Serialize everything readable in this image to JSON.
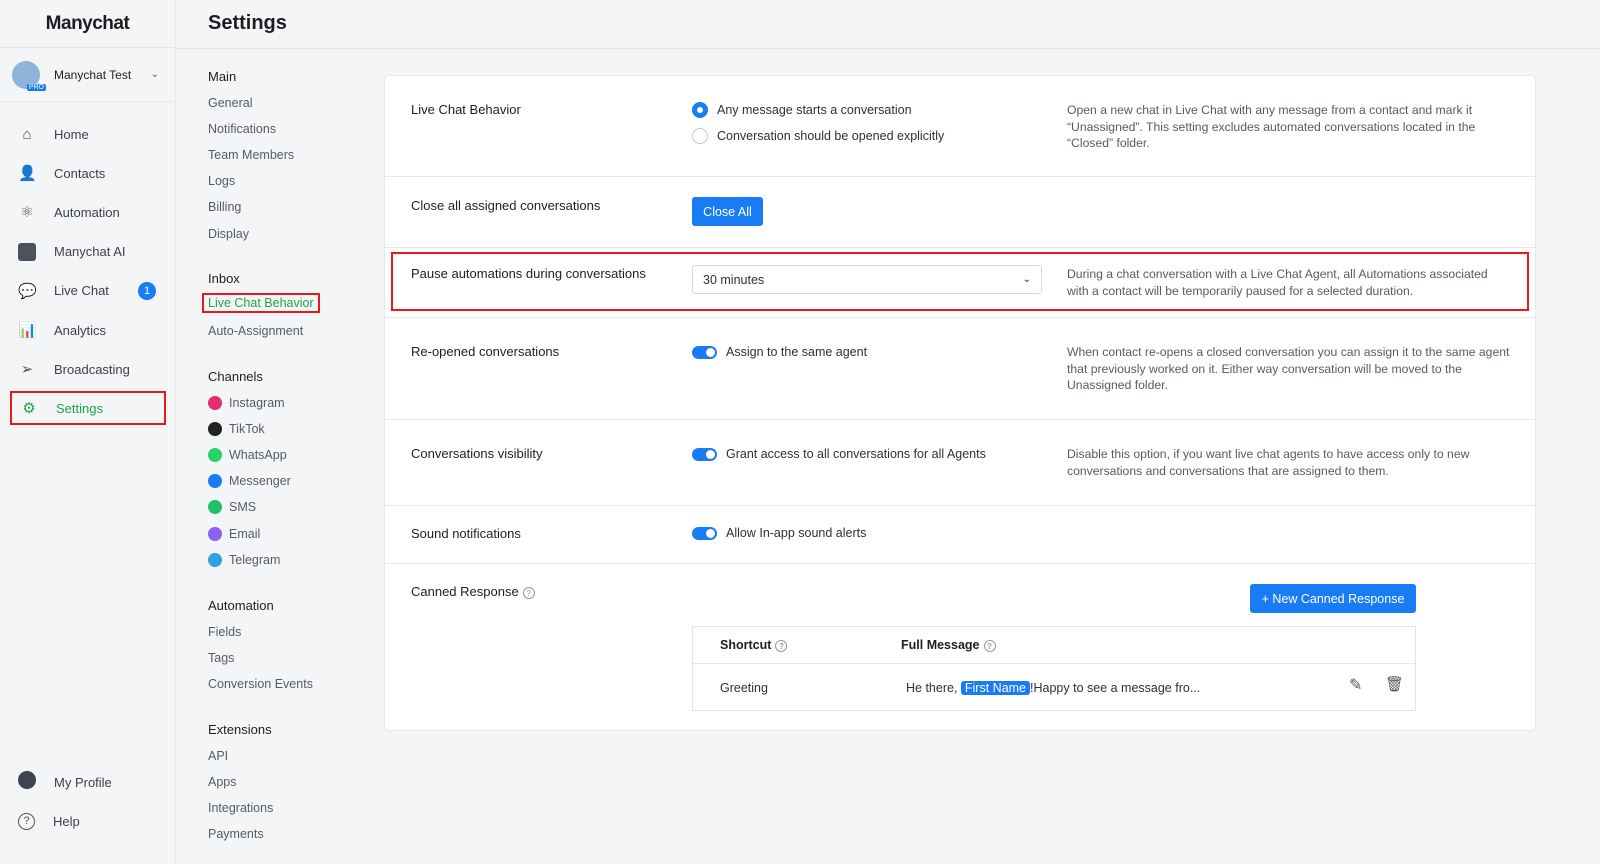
{
  "brand": "Manychat",
  "account": {
    "name": "Manychat Test",
    "badge": "PRO"
  },
  "nav": [
    {
      "label": "Home",
      "icon": "home-icon",
      "glyph": "⌂"
    },
    {
      "label": "Contacts",
      "icon": "user-icon",
      "glyph": "👤"
    },
    {
      "label": "Automation",
      "icon": "atom-icon",
      "glyph": "⚛"
    },
    {
      "label": "Manychat AI",
      "icon": "ai-icon",
      "glyph": "AI"
    },
    {
      "label": "Live Chat",
      "icon": "chat-icon",
      "glyph": "💬",
      "badge": "1"
    },
    {
      "label": "Analytics",
      "icon": "bar-chart-icon",
      "glyph": "📊"
    },
    {
      "label": "Broadcasting",
      "icon": "send-icon",
      "glyph": "➢"
    },
    {
      "label": "Settings",
      "icon": "gear-icon",
      "glyph": "⚙",
      "active": true
    }
  ],
  "nav_bottom": [
    {
      "label": "My Profile",
      "icon": "avatar-icon"
    },
    {
      "label": "Help",
      "icon": "help-icon",
      "glyph": "?"
    }
  ],
  "page_title": "Settings",
  "settings_nav": {
    "main": {
      "title": "Main",
      "items": [
        "General",
        "Notifications",
        "Team Members",
        "Logs",
        "Billing",
        "Display"
      ]
    },
    "inbox": {
      "title": "Inbox",
      "items": [
        "Live Chat Behavior",
        "Auto-Assignment"
      ],
      "active": "Live Chat Behavior"
    },
    "channels": {
      "title": "Channels",
      "items": [
        {
          "label": "Instagram",
          "color": "#e1306c"
        },
        {
          "label": "TikTok",
          "color": "#222222"
        },
        {
          "label": "WhatsApp",
          "color": "#25d366"
        },
        {
          "label": "Messenger",
          "color": "#1a7cf5"
        },
        {
          "label": "SMS",
          "color": "#1ec06b"
        },
        {
          "label": "Email",
          "color": "#8a63f2"
        },
        {
          "label": "Telegram",
          "color": "#2aa3df"
        }
      ]
    },
    "automation": {
      "title": "Automation",
      "items": [
        "Fields",
        "Tags",
        "Conversion Events"
      ]
    },
    "extensions": {
      "title": "Extensions",
      "items": [
        "API",
        "Apps",
        "Integrations",
        "Payments"
      ]
    }
  },
  "rows": {
    "behavior": {
      "label": "Live Chat Behavior",
      "options": [
        "Any message starts a conversation",
        "Conversation should be opened explicitly"
      ],
      "selected": 0,
      "desc": "Open a new chat in Live Chat with any message from a contact and mark it “Unassigned”. This setting excludes automated conversations located in the “Closed” folder."
    },
    "close": {
      "label": "Close all assigned conversations",
      "button": "Close All"
    },
    "pause": {
      "label": "Pause automations during conversations",
      "value": "30 minutes",
      "desc": "During a chat conversation with a Live Chat Agent, all Automations associated with a contact will be temporarily paused for a selected duration."
    },
    "reopened": {
      "label": "Re-opened conversations",
      "toggle": "Assign to the same agent",
      "on": true,
      "desc": "When contact re-opens a closed conversation you can assign it to the same agent that previously worked on it. Either way conversation will be moved to the Unassigned folder."
    },
    "visibility": {
      "label": "Conversations visibility",
      "toggle": "Grant access to all conversations for all Agents",
      "on": true,
      "desc": "Disable this option, if you want live chat agents to have access only to new conversations and conversations that are assigned to them."
    },
    "sound": {
      "label": "Sound notifications",
      "toggle": "Allow In-app sound alerts",
      "on": true
    },
    "canned": {
      "label": "Canned Response",
      "button": "+ New Canned Response",
      "columns": [
        "Shortcut",
        "Full Message"
      ],
      "rows": [
        {
          "shortcut": "Greeting",
          "pre": "He there, ",
          "chip": "First Name",
          "post": "!Happy to see a message fro..."
        }
      ]
    }
  }
}
